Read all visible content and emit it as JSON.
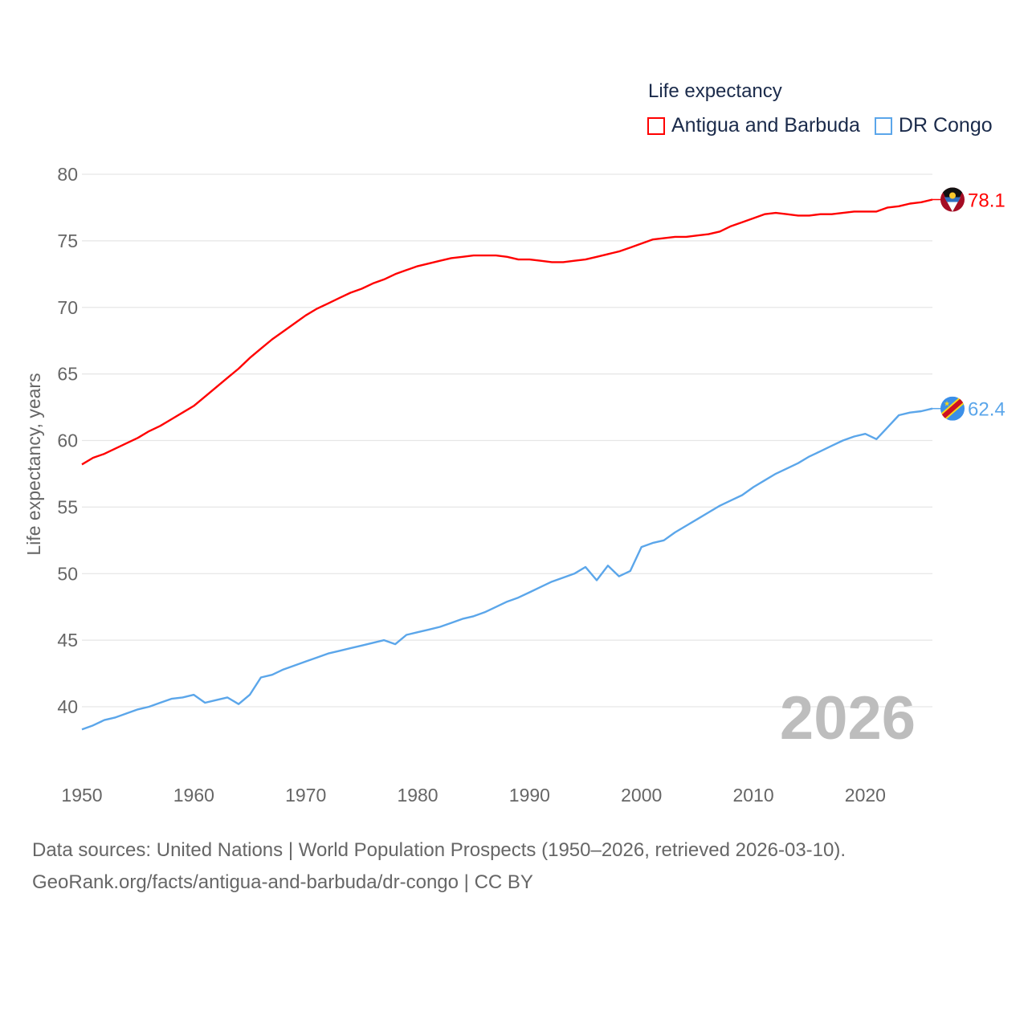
{
  "legend": {
    "title": "Life expectancy",
    "items": [
      {
        "label": "Antigua and Barbuda",
        "color": "#ff0000"
      },
      {
        "label": "DR Congo",
        "color": "#5ba6ea"
      }
    ]
  },
  "footer": {
    "line1": "Data sources: United Nations | World Population Prospects (1950–2026, retrieved 2026-03-10).",
    "line2": "GeoRank.org/facts/antigua-and-barbuda/dr-congo | CC BY"
  },
  "chart_data": {
    "type": "line",
    "title": "Life expectancy",
    "ylabel": "Life expectancy, years",
    "xlabel": "",
    "year_watermark": "2026",
    "xlim": [
      1950,
      2026
    ],
    "ylim": [
      37,
      80
    ],
    "xticks": [
      "1950",
      "1960",
      "1970",
      "1980",
      "1990",
      "2000",
      "2010",
      "2020"
    ],
    "yticks": [
      "40",
      "45",
      "50",
      "55",
      "60",
      "65",
      "70",
      "75",
      "80"
    ],
    "grid": true,
    "legend_position": "top-right",
    "x_start": 1950,
    "series": [
      {
        "name": "Antigua and Barbuda",
        "color": "#ff0000",
        "end_label": "78.1",
        "flag": "antigua-and-barbuda-flag",
        "values": [
          58.2,
          58.7,
          59.0,
          59.4,
          59.8,
          60.2,
          60.7,
          61.1,
          61.6,
          62.1,
          62.6,
          63.3,
          64.0,
          64.7,
          65.4,
          66.2,
          66.9,
          67.6,
          68.2,
          68.8,
          69.4,
          69.9,
          70.3,
          70.7,
          71.1,
          71.4,
          71.8,
          72.1,
          72.5,
          72.8,
          73.1,
          73.3,
          73.5,
          73.7,
          73.8,
          73.9,
          73.9,
          73.9,
          73.8,
          73.6,
          73.6,
          73.5,
          73.4,
          73.4,
          73.5,
          73.6,
          73.8,
          74.0,
          74.2,
          74.5,
          74.8,
          75.1,
          75.2,
          75.3,
          75.3,
          75.4,
          75.5,
          75.7,
          76.1,
          76.4,
          76.7,
          77.0,
          77.1,
          77.0,
          76.9,
          76.9,
          77.0,
          77.0,
          77.1,
          77.2,
          77.2,
          77.2,
          77.5,
          77.6,
          77.8,
          77.9,
          78.1
        ]
      },
      {
        "name": "DR Congo",
        "color": "#5ba6ea",
        "end_label": "62.4",
        "flag": "dr-congo-flag",
        "values": [
          38.3,
          38.6,
          39.0,
          39.2,
          39.5,
          39.8,
          40.0,
          40.3,
          40.6,
          40.7,
          40.9,
          40.3,
          40.5,
          40.7,
          40.2,
          40.9,
          42.2,
          42.4,
          42.8,
          43.1,
          43.4,
          43.7,
          44.0,
          44.2,
          44.4,
          44.6,
          44.8,
          45.0,
          44.7,
          45.4,
          45.6,
          45.8,
          46.0,
          46.3,
          46.6,
          46.8,
          47.1,
          47.5,
          47.9,
          48.2,
          48.6,
          49.0,
          49.4,
          49.7,
          50.0,
          50.5,
          49.5,
          50.6,
          49.8,
          50.2,
          52.0,
          52.3,
          52.5,
          53.1,
          53.6,
          54.1,
          54.6,
          55.1,
          55.5,
          55.9,
          56.5,
          57.0,
          57.5,
          57.9,
          58.3,
          58.8,
          59.2,
          59.6,
          60.0,
          60.3,
          60.5,
          60.1,
          61.0,
          61.9,
          62.1,
          62.2,
          62.4
        ]
      }
    ]
  }
}
